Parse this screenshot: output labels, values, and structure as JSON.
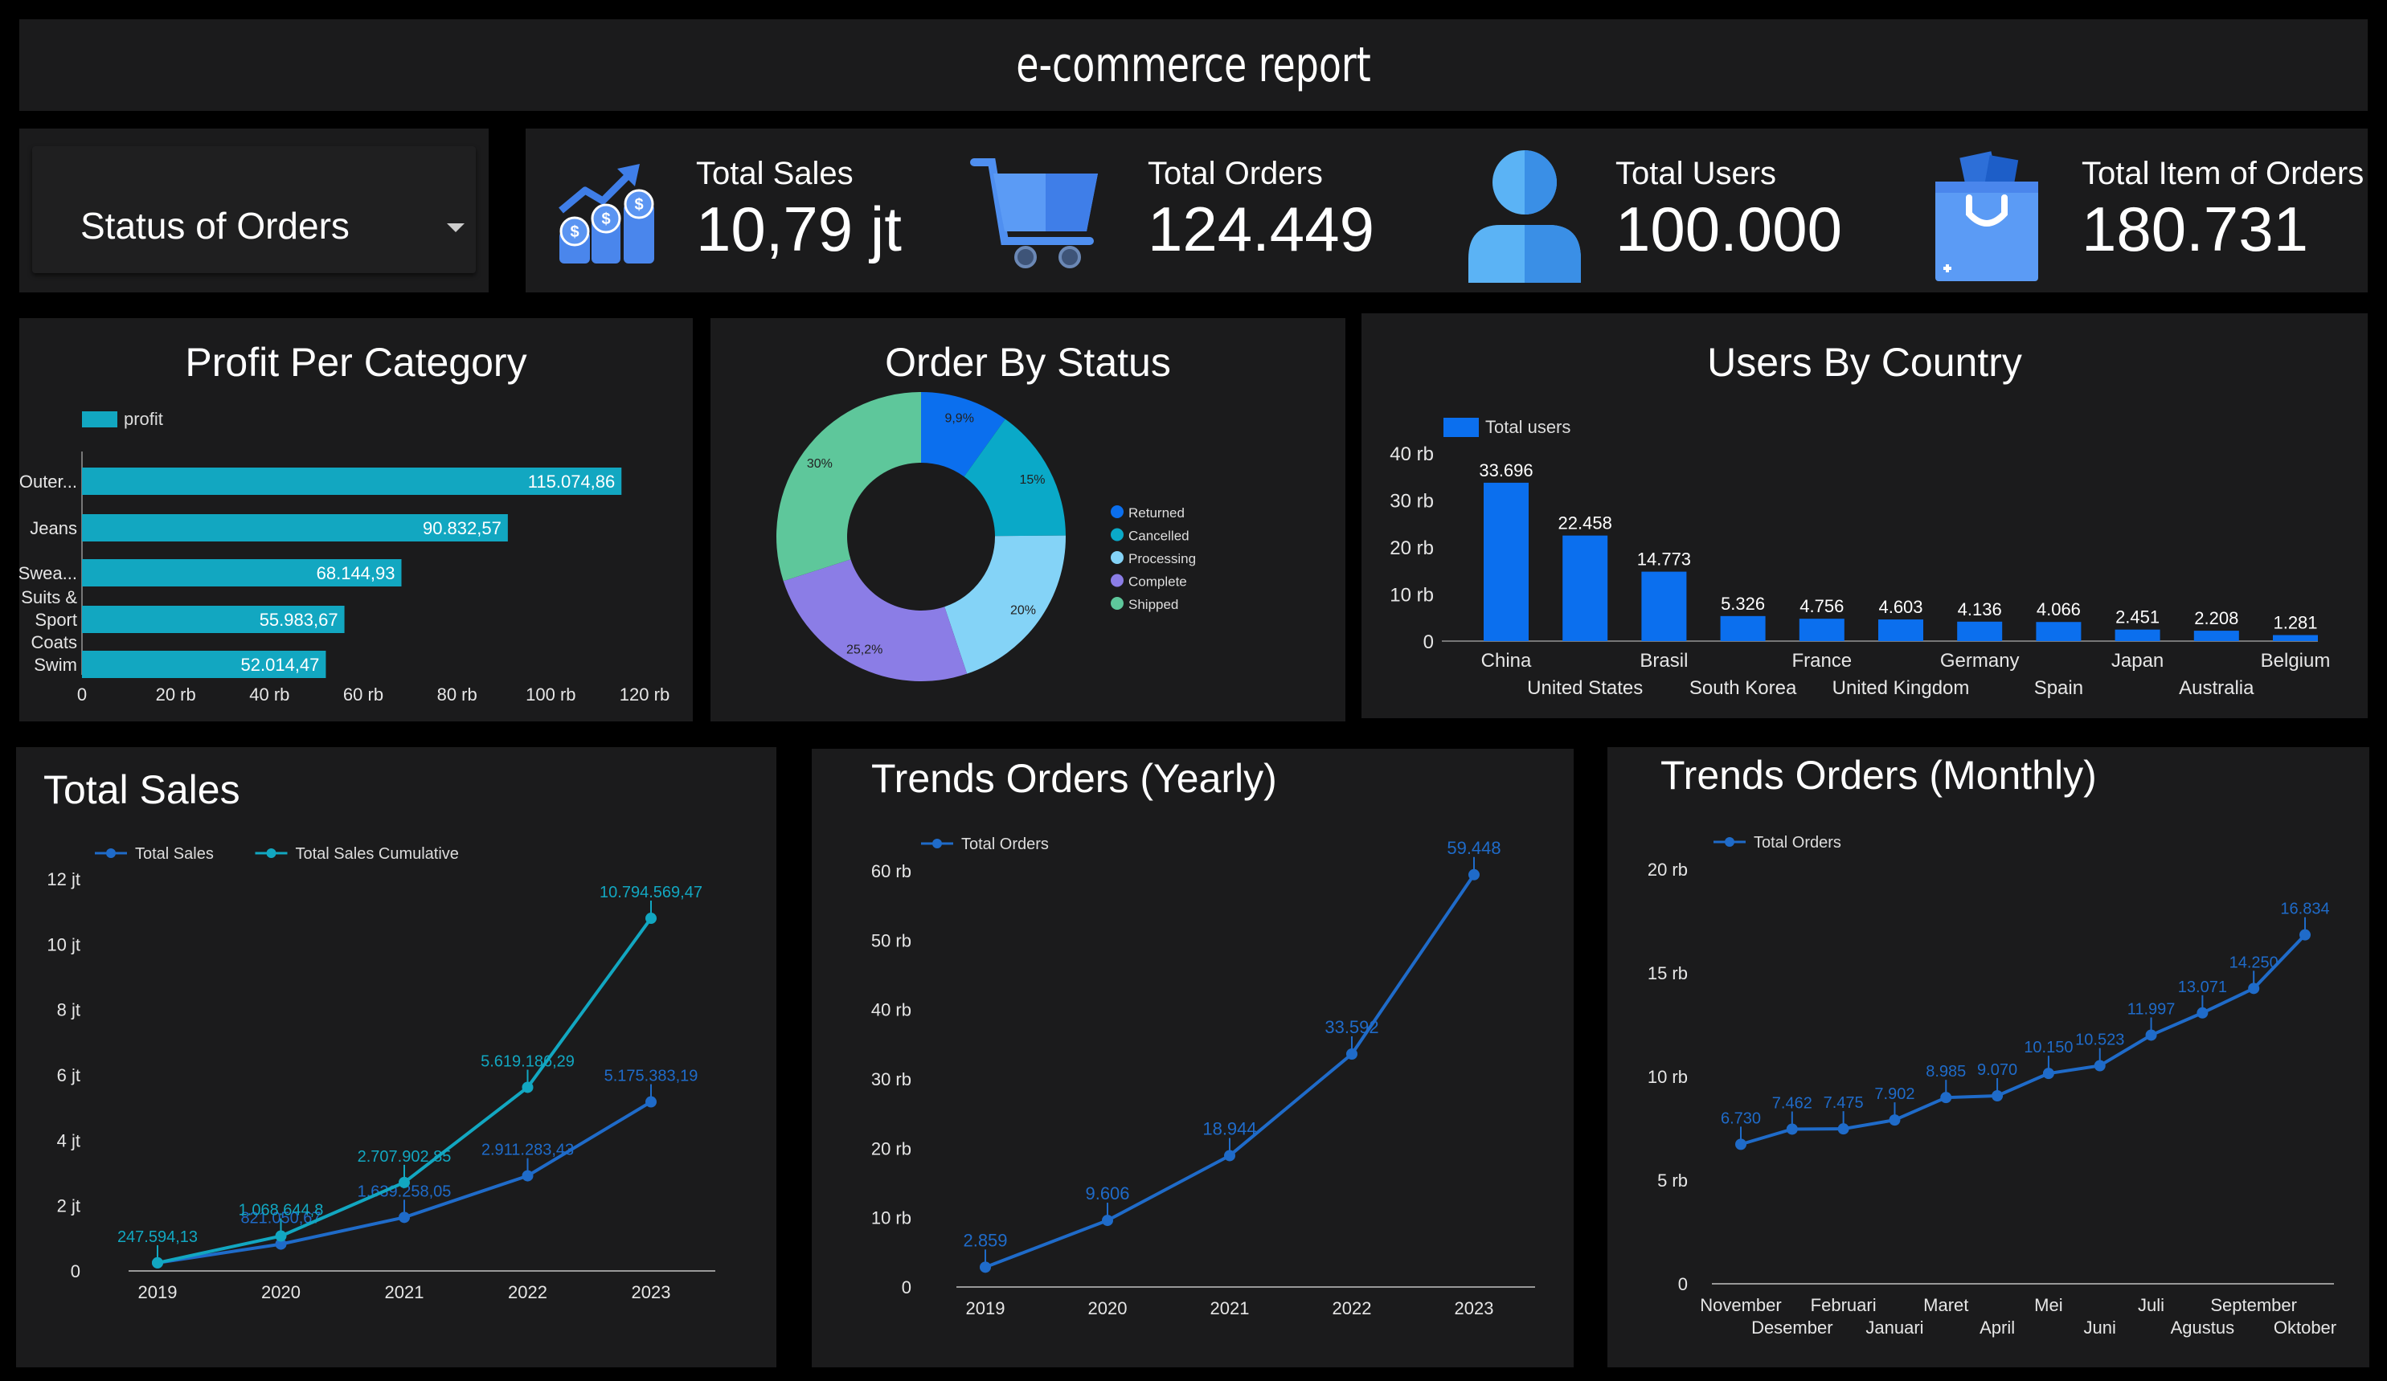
{
  "header": {
    "title": "e-commerce report"
  },
  "filter": {
    "label": "Status of Orders"
  },
  "kpis": [
    {
      "label": "Total Sales",
      "value": "10,79 jt",
      "icon": "growth-money-icon"
    },
    {
      "label": "Total Orders",
      "value": "124.449",
      "icon": "shopping-cart-icon"
    },
    {
      "label": "Total Users",
      "value": "100.000",
      "icon": "user-icon"
    },
    {
      "label": "Total Item of Orders",
      "value": "180.731",
      "icon": "shopping-bag-icon"
    }
  ],
  "colors": {
    "background": "#000000",
    "panel": "#1b1b1c",
    "teal": "#12a7c1",
    "blue": "#0b6fee",
    "line_blue": "#1f6bc9",
    "axis_text": "#e6e6e6"
  },
  "cards": {
    "profit": "Profit Per Category",
    "status": "Order By Status",
    "country": "Users By Country",
    "sales": "Total Sales",
    "yearly": "Trends Orders (Yearly)",
    "monthly": "Trends Orders (Monthly)"
  },
  "chart_data": [
    {
      "id": "profit",
      "type": "bar",
      "orientation": "horizontal",
      "title": "Profit Per Category",
      "legend": [
        "profit"
      ],
      "categories": [
        [
          "Outer..."
        ],
        [
          "Jeans"
        ],
        [
          "Swea..."
        ],
        [
          "Suits &",
          "Sport",
          "Coats"
        ],
        [
          "Swim"
        ]
      ],
      "values": [
        115074.86,
        90832.57,
        68144.93,
        55983.67,
        52014.47
      ],
      "data_labels": [
        "115.074,86",
        "90.832,57",
        "68.144,93",
        "55.983,67",
        "52.014,47"
      ],
      "x_ticks": [
        "0",
        "20 rb",
        "40 rb",
        "60 rb",
        "80 rb",
        "100 rb",
        "120 rb"
      ],
      "xlim": [
        0,
        120000
      ],
      "color": "#12a7c1"
    },
    {
      "id": "status",
      "type": "pie",
      "donut": true,
      "title": "Order By Status",
      "slices": [
        {
          "name": "Returned",
          "value": 9.9,
          "label": "9,9%",
          "color": "#0b6fee"
        },
        {
          "name": "Cancelled",
          "value": 15,
          "label": "15%",
          "color": "#0aa9c8"
        },
        {
          "name": "Processing",
          "value": 20,
          "label": "20%",
          "color": "#84d3f7"
        },
        {
          "name": "Complete",
          "value": 25.2,
          "label": "25,2%",
          "color": "#8b7de6"
        },
        {
          "name": "Shipped",
          "value": 30,
          "label": "30%",
          "color": "#5ec79b"
        }
      ],
      "legend_position": "right"
    },
    {
      "id": "country",
      "type": "bar",
      "title": "Users By Country",
      "legend": [
        "Total users"
      ],
      "categories": [
        "China",
        "United States",
        "Brasil",
        "South Korea",
        "France",
        "United Kingdom",
        "Germany",
        "Spain",
        "Japan",
        "Australia",
        "Belgium"
      ],
      "values": [
        33696,
        22458,
        14773,
        5326,
        4756,
        4603,
        4136,
        4066,
        2451,
        2208,
        1281
      ],
      "data_labels": [
        "33.696",
        "22.458",
        "14.773",
        "5.326",
        "4.756",
        "4.603",
        "4.136",
        "4.066",
        "2.451",
        "2.208",
        "1.281"
      ],
      "y_ticks": [
        "0",
        "10 rb",
        "20 rb",
        "30 rb",
        "40 rb"
      ],
      "ylim": [
        0,
        40000
      ],
      "color": "#0b6fee"
    },
    {
      "id": "sales",
      "type": "line",
      "title": "Total Sales",
      "x": [
        "2019",
        "2020",
        "2021",
        "2022",
        "2023"
      ],
      "series": [
        {
          "name": "Total Sales",
          "values": [
            247594.13,
            821050.67,
            1639258.05,
            2911283.43,
            5175383.19
          ],
          "labels": [
            "",
            "821.050,67",
            "1.639.258,05",
            "2.911.283,43",
            "5.175.383,19"
          ],
          "color": "#1f6bc9"
        },
        {
          "name": "Total Sales Cumulative",
          "values": [
            247594.13,
            1068644.8,
            2707902.85,
            5619186.29,
            10794569.47
          ],
          "labels": [
            "247.594,13",
            "1.068.644,8",
            "2.707.902,85",
            "5.619.186,29",
            "10.794.569,47"
          ],
          "color": "#12a7c1"
        }
      ],
      "y_ticks": [
        "0",
        "2 jt",
        "4 jt",
        "6 jt",
        "8 jt",
        "10 jt",
        "12 jt"
      ],
      "ylim": [
        0,
        12000000
      ]
    },
    {
      "id": "yearly",
      "type": "line",
      "title": "Trends Orders (Yearly)",
      "x": [
        "2019",
        "2020",
        "2021",
        "2022",
        "2023"
      ],
      "series": [
        {
          "name": "Total Orders",
          "values": [
            2859,
            9606,
            18944,
            33592,
            59448
          ],
          "labels": [
            "2.859",
            "9.606",
            "18.944",
            "33.592",
            "59.448"
          ],
          "color": "#1f6bc9"
        }
      ],
      "y_ticks": [
        "0",
        "10 rb",
        "20 rb",
        "30 rb",
        "40 rb",
        "50 rb",
        "60 rb"
      ],
      "ylim": [
        0,
        60000
      ]
    },
    {
      "id": "monthly",
      "type": "line",
      "title": "Trends Orders (Monthly)",
      "x": [
        "November",
        "Desember",
        "Februari",
        "Januari",
        "Maret",
        "April",
        "Mei",
        "Juni",
        "Juli",
        "Agustus",
        "September",
        "Oktober"
      ],
      "series": [
        {
          "name": "Total Orders",
          "values": [
            6730,
            7462,
            7475,
            7902,
            8985,
            9070,
            10150,
            10523,
            11997,
            13071,
            14250,
            16834
          ],
          "labels": [
            "6.730",
            "7.462",
            "7.475",
            "7.902",
            "8.985",
            "9.070",
            "10.150",
            "10.523",
            "11.997",
            "13.071",
            "14.250",
            "16.834"
          ],
          "color": "#1f6bc9"
        }
      ],
      "y_ticks": [
        "0",
        "5 rb",
        "10 rb",
        "15 rb",
        "20 rb"
      ],
      "ylim": [
        0,
        20000
      ]
    }
  ]
}
